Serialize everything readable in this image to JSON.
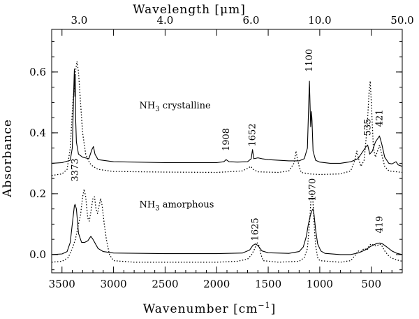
{
  "chart_data": {
    "type": "line",
    "xlabel_main": "Wavenumber [cm",
    "xlabel_sup": "−1",
    "xlabel_close": "]",
    "top_label_pre": "Wavelength [",
    "top_label_mu": "μ",
    "top_label_post": "m]",
    "ylabel": "Absorbance",
    "xlim": [
      3600,
      200
    ],
    "ylim": [
      -0.06,
      0.74
    ],
    "x_ticks": [
      {
        "value": 3500,
        "label": "3500"
      },
      {
        "value": 3000,
        "label": "3000"
      },
      {
        "value": 2500,
        "label": "2500"
      },
      {
        "value": 2000,
        "label": "2000"
      },
      {
        "value": 1500,
        "label": "1500"
      },
      {
        "value": 1000,
        "label": "1000"
      },
      {
        "value": 500,
        "label": "500"
      }
    ],
    "y_ticks": [
      {
        "value": 0.0,
        "label": "0.0"
      },
      {
        "value": 0.2,
        "label": "0.2"
      },
      {
        "value": 0.4,
        "label": "0.4"
      },
      {
        "value": 0.6,
        "label": "0.6"
      }
    ],
    "top_ticks": [
      {
        "value": 3333.3,
        "label": "3.0"
      },
      {
        "value": 2500,
        "label": "4.0"
      },
      {
        "value": 1666.7,
        "label": "6.0"
      },
      {
        "value": 1000,
        "label": "10.0"
      },
      {
        "value": 200,
        "label": "50.0"
      }
    ],
    "annotations": [
      {
        "name": "crystalline",
        "pre": "NH",
        "sub": "3",
        "post": " crystalline",
        "x": 2750,
        "y": 0.48
      },
      {
        "name": "amorphous",
        "pre": "NH",
        "sub": "3",
        "post": " amorphous",
        "x": 2750,
        "y": 0.155
      }
    ],
    "peak_labels": [
      {
        "text": "3373",
        "x": 3373,
        "y": 0.24
      },
      {
        "text": "1908",
        "x": 1908,
        "y": 0.34
      },
      {
        "text": "1652",
        "x": 1652,
        "y": 0.355
      },
      {
        "text": "1100",
        "x": 1100,
        "y": 0.6
      },
      {
        "text": "535",
        "x": 535,
        "y": 0.39
      },
      {
        "text": "421",
        "x": 421,
        "y": 0.42
      },
      {
        "text": "1625",
        "x": 1625,
        "y": 0.045
      },
      {
        "text": "1070",
        "x": 1070,
        "y": 0.175
      },
      {
        "text": "419",
        "x": 419,
        "y": 0.07
      }
    ],
    "series": [
      {
        "name": "NH3 crystalline (solid)",
        "style": "solid",
        "baseline": 0.3,
        "points": [
          [
            3600,
            0.3
          ],
          [
            3500,
            0.302
          ],
          [
            3420,
            0.31
          ],
          [
            3400,
            0.35
          ],
          [
            3385,
            0.55
          ],
          [
            3380,
            0.61
          ],
          [
            3375,
            0.52
          ],
          [
            3372,
            0.59
          ],
          [
            3368,
            0.45
          ],
          [
            3360,
            0.37
          ],
          [
            3340,
            0.33
          ],
          [
            3300,
            0.32
          ],
          [
            3240,
            0.315
          ],
          [
            3210,
            0.345
          ],
          [
            3195,
            0.355
          ],
          [
            3180,
            0.33
          ],
          [
            3150,
            0.312
          ],
          [
            3000,
            0.305
          ],
          [
            2500,
            0.302
          ],
          [
            2000,
            0.302
          ],
          [
            1930,
            0.305
          ],
          [
            1908,
            0.312
          ],
          [
            1880,
            0.305
          ],
          [
            1800,
            0.304
          ],
          [
            1700,
            0.305
          ],
          [
            1665,
            0.315
          ],
          [
            1652,
            0.345
          ],
          [
            1640,
            0.315
          ],
          [
            1600,
            0.318
          ],
          [
            1560,
            0.315
          ],
          [
            1500,
            0.312
          ],
          [
            1400,
            0.31
          ],
          [
            1300,
            0.308
          ],
          [
            1200,
            0.308
          ],
          [
            1150,
            0.315
          ],
          [
            1120,
            0.35
          ],
          [
            1105,
            0.52
          ],
          [
            1100,
            0.57
          ],
          [
            1095,
            0.5
          ],
          [
            1088,
            0.42
          ],
          [
            1080,
            0.47
          ],
          [
            1075,
            0.44
          ],
          [
            1065,
            0.34
          ],
          [
            1040,
            0.31
          ],
          [
            1000,
            0.304
          ],
          [
            900,
            0.3
          ],
          [
            800,
            0.3
          ],
          [
            700,
            0.305
          ],
          [
            630,
            0.315
          ],
          [
            580,
            0.34
          ],
          [
            550,
            0.355
          ],
          [
            535,
            0.36
          ],
          [
            515,
            0.33
          ],
          [
            490,
            0.34
          ],
          [
            460,
            0.37
          ],
          [
            430,
            0.385
          ],
          [
            421,
            0.39
          ],
          [
            400,
            0.365
          ],
          [
            370,
            0.32
          ],
          [
            330,
            0.3
          ],
          [
            300,
            0.298
          ],
          [
            260,
            0.305
          ],
          [
            240,
            0.295
          ],
          [
            200,
            0.29
          ]
        ]
      },
      {
        "name": "NH3 crystalline (dotted)",
        "style": "dotted",
        "points": [
          [
            3600,
            0.26
          ],
          [
            3500,
            0.265
          ],
          [
            3450,
            0.28
          ],
          [
            3420,
            0.35
          ],
          [
            3395,
            0.5
          ],
          [
            3370,
            0.6
          ],
          [
            3355,
            0.635
          ],
          [
            3340,
            0.6
          ],
          [
            3320,
            0.5
          ],
          [
            3300,
            0.4
          ],
          [
            3270,
            0.33
          ],
          [
            3230,
            0.3
          ],
          [
            3200,
            0.29
          ],
          [
            3150,
            0.28
          ],
          [
            3000,
            0.273
          ],
          [
            2500,
            0.271
          ],
          [
            2000,
            0.27
          ],
          [
            1750,
            0.275
          ],
          [
            1690,
            0.285
          ],
          [
            1670,
            0.29
          ],
          [
            1645,
            0.28
          ],
          [
            1600,
            0.272
          ],
          [
            1400,
            0.27
          ],
          [
            1300,
            0.275
          ],
          [
            1250,
            0.3
          ],
          [
            1230,
            0.34
          ],
          [
            1220,
            0.32
          ],
          [
            1200,
            0.29
          ],
          [
            1180,
            0.27
          ],
          [
            1100,
            0.265
          ],
          [
            1000,
            0.263
          ],
          [
            800,
            0.265
          ],
          [
            700,
            0.275
          ],
          [
            660,
            0.31
          ],
          [
            640,
            0.34
          ],
          [
            620,
            0.31
          ],
          [
            600,
            0.29
          ],
          [
            570,
            0.31
          ],
          [
            540,
            0.42
          ],
          [
            520,
            0.545
          ],
          [
            510,
            0.57
          ],
          [
            500,
            0.5
          ],
          [
            480,
            0.35
          ],
          [
            460,
            0.32
          ],
          [
            440,
            0.34
          ],
          [
            420,
            0.36
          ],
          [
            400,
            0.33
          ],
          [
            370,
            0.29
          ],
          [
            330,
            0.275
          ],
          [
            250,
            0.272
          ],
          [
            200,
            0.27
          ]
        ]
      },
      {
        "name": "NH3 amorphous (solid)",
        "style": "solid",
        "points": [
          [
            3600,
            0.0
          ],
          [
            3500,
            0.002
          ],
          [
            3450,
            0.01
          ],
          [
            3420,
            0.04
          ],
          [
            3400,
            0.1
          ],
          [
            3380,
            0.16
          ],
          [
            3373,
            0.165
          ],
          [
            3360,
            0.15
          ],
          [
            3340,
            0.07
          ],
          [
            3310,
            0.04
          ],
          [
            3280,
            0.04
          ],
          [
            3250,
            0.045
          ],
          [
            3220,
            0.06
          ],
          [
            3200,
            0.05
          ],
          [
            3150,
            0.02
          ],
          [
            3100,
            0.01
          ],
          [
            3000,
            0.005
          ],
          [
            2500,
            0.003
          ],
          [
            2000,
            0.003
          ],
          [
            1750,
            0.005
          ],
          [
            1680,
            0.015
          ],
          [
            1650,
            0.03
          ],
          [
            1625,
            0.035
          ],
          [
            1600,
            0.03
          ],
          [
            1560,
            0.012
          ],
          [
            1500,
            0.006
          ],
          [
            1300,
            0.004
          ],
          [
            1200,
            0.01
          ],
          [
            1160,
            0.025
          ],
          [
            1130,
            0.06
          ],
          [
            1110,
            0.1
          ],
          [
            1090,
            0.13
          ],
          [
            1075,
            0.145
          ],
          [
            1065,
            0.15
          ],
          [
            1055,
            0.13
          ],
          [
            1040,
            0.08
          ],
          [
            1020,
            0.035
          ],
          [
            990,
            0.012
          ],
          [
            950,
            0.004
          ],
          [
            800,
            0.0
          ],
          [
            700,
            0.0
          ],
          [
            620,
            0.006
          ],
          [
            560,
            0.015
          ],
          [
            500,
            0.028
          ],
          [
            450,
            0.036
          ],
          [
            419,
            0.038
          ],
          [
            390,
            0.035
          ],
          [
            350,
            0.025
          ],
          [
            300,
            0.012
          ],
          [
            250,
            0.004
          ],
          [
            200,
            0.0
          ]
        ]
      },
      {
        "name": "NH3 amorphous (dotted)",
        "style": "dotted",
        "points": [
          [
            3600,
            -0.025
          ],
          [
            3500,
            -0.022
          ],
          [
            3440,
            -0.01
          ],
          [
            3400,
            0.02
          ],
          [
            3370,
            0.05
          ],
          [
            3340,
            0.1
          ],
          [
            3320,
            0.13
          ],
          [
            3300,
            0.19
          ],
          [
            3285,
            0.215
          ],
          [
            3270,
            0.19
          ],
          [
            3250,
            0.12
          ],
          [
            3235,
            0.11
          ],
          [
            3220,
            0.14
          ],
          [
            3200,
            0.185
          ],
          [
            3185,
            0.19
          ],
          [
            3170,
            0.15
          ],
          [
            3155,
            0.135
          ],
          [
            3140,
            0.16
          ],
          [
            3125,
            0.185
          ],
          [
            3110,
            0.16
          ],
          [
            3090,
            0.1
          ],
          [
            3070,
            0.05
          ],
          [
            3040,
            0.0
          ],
          [
            3000,
            -0.02
          ],
          [
            2800,
            -0.025
          ],
          [
            2500,
            -0.025
          ],
          [
            2000,
            -0.025
          ],
          [
            1800,
            -0.022
          ],
          [
            1700,
            -0.015
          ],
          [
            1660,
            0.0
          ],
          [
            1630,
            0.02
          ],
          [
            1610,
            0.04
          ],
          [
            1590,
            0.03
          ],
          [
            1570,
            0.0
          ],
          [
            1550,
            -0.02
          ],
          [
            1400,
            -0.025
          ],
          [
            1200,
            -0.022
          ],
          [
            1150,
            -0.01
          ],
          [
            1120,
            0.02
          ],
          [
            1100,
            0.1
          ],
          [
            1085,
            0.18
          ],
          [
            1075,
            0.2
          ],
          [
            1068,
            0.19
          ],
          [
            1055,
            0.1
          ],
          [
            1040,
            0.03
          ],
          [
            1020,
            -0.01
          ],
          [
            1000,
            -0.02
          ],
          [
            800,
            -0.025
          ],
          [
            700,
            -0.02
          ],
          [
            650,
            0.0
          ],
          [
            630,
            0.012
          ],
          [
            600,
            0.01
          ],
          [
            570,
            0.02
          ],
          [
            540,
            0.015
          ],
          [
            520,
            0.03
          ],
          [
            500,
            0.035
          ],
          [
            470,
            0.03
          ],
          [
            450,
            0.028
          ],
          [
            430,
            0.032
          ],
          [
            419,
            0.035
          ],
          [
            400,
            0.03
          ],
          [
            370,
            0.012
          ],
          [
            330,
            -0.005
          ],
          [
            280,
            -0.015
          ],
          [
            200,
            -0.022
          ]
        ]
      }
    ]
  }
}
